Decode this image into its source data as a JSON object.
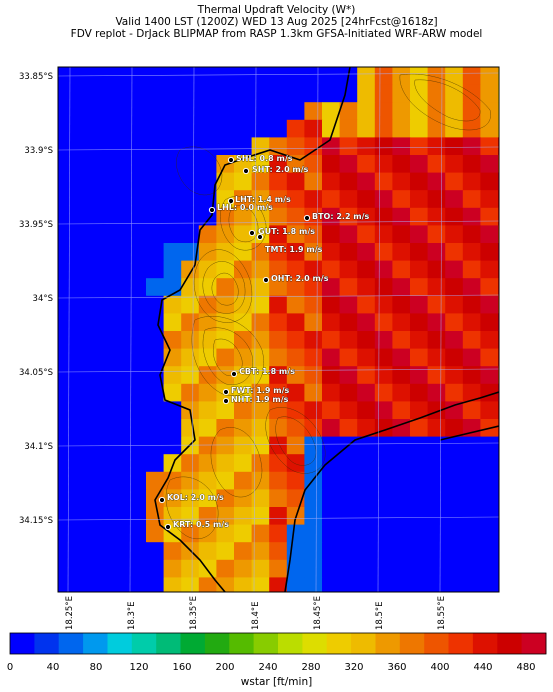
{
  "header": {
    "title": "Thermal Updraft Velocity (W*)",
    "valid": "Valid 1400 LST (1200Z) WED 13 Aug 2025 [24hrFcst@1618z]",
    "source": "FDV replot - DrJack BLIPMAP from RASP 1.3km GFSA-Initiated WRF-ARW model"
  },
  "map": {
    "lat_labels": [
      "33.85°S",
      "33.9°S",
      "33.95°S",
      "34°S",
      "34.05°S",
      "34.1°S",
      "34.15°S"
    ],
    "lon_labels": [
      "18.25°E",
      "18.3°E",
      "18.35°E",
      "18.4°E",
      "18.45°E",
      "18.5°E",
      "18.55°E"
    ],
    "stations": [
      {
        "code": "SHL",
        "label": "SHL: 0.8 m/s"
      },
      {
        "code": "SHT",
        "label": "SHT: 2.0 m/s"
      },
      {
        "code": "LHT",
        "label": "LHT: 1.4 m/s"
      },
      {
        "code": "LHL",
        "label": "LHL: 0.0 m/s"
      },
      {
        "code": "BTO",
        "label": "BTO: 2.2 m/s"
      },
      {
        "code": "GUT",
        "label": "GUT: 1.8 m/s"
      },
      {
        "code": "TMT",
        "label": "TMT: 1.9 m/s"
      },
      {
        "code": "OHT",
        "label": "OHT: 2.0 m/s"
      },
      {
        "code": "CBT",
        "label": "CBT: 1.8 m/s"
      },
      {
        "code": "FWT",
        "label": "FWT: 1.9 m/s"
      },
      {
        "code": "NHT",
        "label": "NHT: 1.9 m/s"
      },
      {
        "code": "KOL",
        "label": "KOL: 2.0 m/s"
      },
      {
        "code": "KRT",
        "label": "KRT: 0.5 m/s"
      }
    ]
  },
  "colorbar": {
    "title": "wstar [ft/min]",
    "ticks": [
      "0",
      "40",
      "80",
      "120",
      "160",
      "200",
      "240",
      "280",
      "320",
      "360",
      "400",
      "440",
      "480"
    ],
    "colors": [
      "#0000ff",
      "#0033ee",
      "#0066ee",
      "#0099ee",
      "#00ccdd",
      "#00ccaa",
      "#00bb77",
      "#00aa33",
      "#22aa11",
      "#55bb00",
      "#88cc00",
      "#bbdd00",
      "#dddd00",
      "#eecc00",
      "#eebb00",
      "#ee9900",
      "#ee7700",
      "#ee5500",
      "#ee3300",
      "#dd1100",
      "#cc0000",
      "#cc0022"
    ]
  }
}
